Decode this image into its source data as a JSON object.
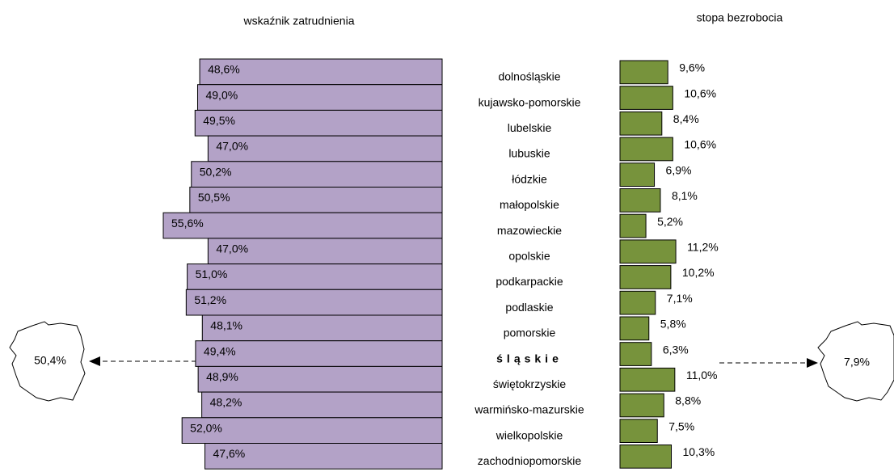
{
  "chart_data": {
    "type": "bar",
    "categories": [
      "dolnośląskie",
      "kujawsko-pomorskie",
      "lubelskie",
      "lubuskie",
      "łódzkie",
      "małopolskie",
      "mazowieckie",
      "opolskie",
      "podkarpackie",
      "podlaskie",
      "pomorskie",
      "śląskie",
      "świętokrzyskie",
      "warmińsko-mazurskie",
      "wielkopolskie",
      "zachodniopomorskie"
    ],
    "highlight": "śląskie",
    "series": [
      {
        "name": "wskaźnik zatrudnienia",
        "color": "#b3a2c7",
        "xlim": [
          2,
          57
        ],
        "values": [
          48.6,
          49.0,
          49.5,
          47.0,
          50.2,
          50.5,
          55.6,
          47.0,
          51.0,
          51.2,
          48.1,
          49.4,
          48.9,
          48.2,
          52.0,
          47.6
        ],
        "value_labels": [
          "48,6%",
          "49,0%",
          "49,5%",
          "47,0%",
          "50,2%",
          "50,5%",
          "55,6%",
          "47,0%",
          "51,0%",
          "51,2%",
          "48,1%",
          "49,4%",
          "48,9%",
          "48,2%",
          "52,0%",
          "47,6%"
        ],
        "reference": {
          "value": 50.4,
          "label": "50,4%"
        }
      },
      {
        "name": "stopa bezrobocia",
        "color": "#77933c",
        "xlim": [
          0,
          12
        ],
        "values": [
          9.6,
          10.6,
          8.4,
          10.6,
          6.9,
          8.1,
          5.2,
          11.2,
          10.2,
          7.1,
          5.8,
          6.3,
          11.0,
          8.8,
          7.5,
          10.3
        ],
        "value_labels": [
          "9,6%",
          "10,6%",
          "8,4%",
          "10,6%",
          "6,9%",
          "8,1%",
          "5,2%",
          "11,2%",
          "10,2%",
          "7,1%",
          "5,8%",
          "6,3%",
          "11,0%",
          "8,8%",
          "7,5%",
          "10,3%"
        ],
        "reference": {
          "value": 7.9,
          "label": "7,9%"
        }
      }
    ]
  }
}
